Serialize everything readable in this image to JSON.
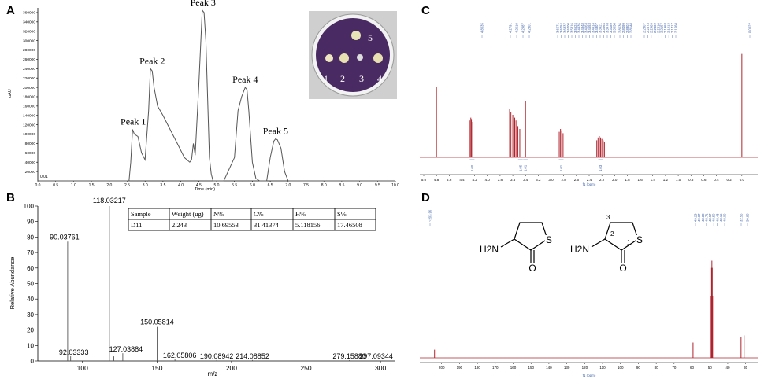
{
  "panels": {
    "A": "A",
    "B": "B",
    "C": "C",
    "D": "D"
  },
  "colors": {
    "trace_gray": "#555555",
    "nmr_red": "#b0242e",
    "axis": "#000000",
    "annot_blue": "#3b5ea8",
    "plate_purple": "#4a2a62"
  },
  "chart_data": [
    {
      "panel": "A",
      "type": "line",
      "title": "",
      "xlabel": "Time (min)",
      "ylabel": "uAU",
      "xlim": [
        0,
        10
      ],
      "ylim": [
        0,
        370000
      ],
      "x_ticks": [
        "0.0",
        "0.5",
        "1.0",
        "1.5",
        "2.0",
        "2.5",
        "3.0",
        "3.5",
        "4.0",
        "4.5",
        "5.0",
        "5.5",
        "6.0",
        "6.5",
        "7.0",
        "7.5",
        "8.0",
        "8.5",
        "9.0",
        "9.5",
        "10.0"
      ],
      "y_ticks": [
        "20000",
        "40000",
        "60000",
        "80000",
        "100000",
        "120000",
        "140000",
        "160000",
        "180000",
        "200000",
        "220000",
        "240000",
        "260000",
        "280000",
        "300000",
        "320000",
        "340000",
        "360000"
      ],
      "baseline_label": "0.01",
      "x": [
        0,
        2.55,
        2.6,
        2.65,
        2.7,
        2.8,
        2.9,
        3.0,
        3.1,
        3.15,
        3.2,
        3.25,
        3.35,
        3.5,
        3.7,
        3.9,
        4.1,
        4.25,
        4.3,
        4.35,
        4.4,
        4.5,
        4.6,
        4.65,
        4.7,
        4.8,
        4.85,
        4.9,
        5.2,
        5.5,
        5.6,
        5.7,
        5.8,
        5.85,
        5.9,
        6.0,
        6.1,
        6.2,
        6.4,
        6.5,
        6.6,
        6.65,
        6.7,
        6.8,
        6.9,
        7.0,
        7.2,
        10
      ],
      "y": [
        0,
        0,
        40000,
        110000,
        100000,
        95000,
        60000,
        45000,
        150000,
        240000,
        235000,
        200000,
        160000,
        140000,
        110000,
        80000,
        50000,
        40000,
        45000,
        80000,
        55000,
        200000,
        365000,
        360000,
        300000,
        50000,
        15000,
        0,
        0,
        50000,
        150000,
        180000,
        200000,
        195000,
        150000,
        40000,
        5000,
        0,
        0,
        50000,
        85000,
        90000,
        88000,
        70000,
        20000,
        0,
        0,
        0
      ],
      "peak_labels": [
        {
          "label": "Peak 1",
          "x": 2.67,
          "y": 110000
        },
        {
          "label": "Peak 2",
          "x": 3.2,
          "y": 240000
        },
        {
          "label": "Peak 3",
          "x": 4.62,
          "y": 365000
        },
        {
          "label": "Peak 4",
          "x": 5.8,
          "y": 200000
        },
        {
          "label": "Peak 5",
          "x": 6.65,
          "y": 90000
        }
      ],
      "inset_plate_labels": [
        "1",
        "2",
        "3",
        "4",
        "5"
      ]
    },
    {
      "panel": "B",
      "type": "bar",
      "title": "",
      "xlabel": "m/z",
      "ylabel": "Relative Abundance",
      "xlim": [
        70,
        310
      ],
      "ylim": [
        0,
        100
      ],
      "x_ticks": [
        "100",
        "150",
        "200",
        "250",
        "300"
      ],
      "y_ticks": [
        "0",
        "10",
        "20",
        "30",
        "40",
        "50",
        "60",
        "70",
        "80",
        "90",
        "100"
      ],
      "peaks": [
        {
          "mz": 90.03761,
          "value": 77,
          "label": "90.03761"
        },
        {
          "mz": 92.03333,
          "value": 3,
          "label": "92.03333"
        },
        {
          "mz": 118.03217,
          "value": 100,
          "label": "118.03217"
        },
        {
          "mz": 121.0,
          "value": 3,
          "label": ""
        },
        {
          "mz": 127.03884,
          "value": 5,
          "label": "127.03884"
        },
        {
          "mz": 150.05814,
          "value": 22,
          "label": "150.05814"
        },
        {
          "mz": 162.05806,
          "value": 1,
          "label": "162.05806"
        },
        {
          "mz": 190.08942,
          "value": 0.6,
          "label": "190.08942"
        },
        {
          "mz": 214.08852,
          "value": 0.6,
          "label": "214.08852"
        },
        {
          "mz": 279.1588,
          "value": 0.5,
          "label": "279.15880"
        },
        {
          "mz": 297.09344,
          "value": 0.5,
          "label": "297.09344"
        }
      ],
      "table": {
        "headers": [
          "Sample",
          "Weight (ug)",
          "N%",
          "C%",
          "H%",
          "S%"
        ],
        "rows": [
          [
            "D11",
            "2.243",
            "10.69553",
            "31.41374",
            "5.118156",
            "17.46508"
          ]
        ]
      }
    },
    {
      "panel": "C",
      "type": "line",
      "title": "",
      "xlabel": "f1 (ppm)",
      "ylabel": "",
      "xlim": [
        5.0,
        -0.2
      ],
      "x_ticks": [
        "5.0",
        "4.8",
        "4.6",
        "4.4",
        "4.2",
        "4.0",
        "3.8",
        "3.6",
        "3.4",
        "3.2",
        "3.0",
        "2.8",
        "2.6",
        "2.4",
        "2.2",
        "2.0",
        "1.8",
        "1.6",
        "1.4",
        "1.2",
        "1.0",
        "0.8",
        "0.6",
        "0.4",
        "0.2",
        "0.0"
      ],
      "peak_shifts_label_groups": [
        [
          "4.8035"
        ],
        [
          "4.2791",
          "4.2610",
          "4.2487",
          "4.2301"
        ],
        [
          "3.6571",
          "3.6454",
          "3.6337",
          "3.6200",
          "3.5816",
          "3.5524",
          "3.4935",
          "3.4848",
          "3.4663",
          "3.4553",
          "3.4414",
          "3.4307",
          "3.3921",
          "3.3664",
          "3.3478",
          "3.3189",
          "3.3038"
        ],
        [
          "2.8636",
          "2.8499",
          "2.8302",
          "2.8148"
        ],
        [
          "2.2807",
          "2.2673",
          "2.2489",
          "2.2402",
          "2.2310",
          "2.2157",
          "2.1968",
          "2.1913",
          "2.1717",
          "2.1568"
        ],
        [
          "0.0022"
        ]
      ],
      "integrals": [
        {
          "x": 4.24,
          "label": "1.00"
        },
        {
          "x": 3.48,
          "label": "1.05"
        },
        {
          "x": 3.4,
          "label": "1.01"
        },
        {
          "x": 2.84,
          "label": "1.01"
        },
        {
          "x": 2.22,
          "label": "1.03"
        }
      ],
      "peaks": [
        {
          "ppm": 4.8,
          "height": 0.5
        },
        {
          "ppm": 4.28,
          "height": 0.26
        },
        {
          "ppm": 4.26,
          "height": 0.28
        },
        {
          "ppm": 4.25,
          "height": 0.27
        },
        {
          "ppm": 4.23,
          "height": 0.25
        },
        {
          "ppm": 3.65,
          "height": 0.34
        },
        {
          "ppm": 3.63,
          "height": 0.32
        },
        {
          "ppm": 3.6,
          "height": 0.3
        },
        {
          "ppm": 3.57,
          "height": 0.28
        },
        {
          "ppm": 3.55,
          "height": 0.26
        },
        {
          "ppm": 3.52,
          "height": 0.22
        },
        {
          "ppm": 3.49,
          "height": 0.2
        },
        {
          "ppm": 3.4,
          "height": 0.4
        },
        {
          "ppm": 2.87,
          "height": 0.18
        },
        {
          "ppm": 2.85,
          "height": 0.2
        },
        {
          "ppm": 2.83,
          "height": 0.19
        },
        {
          "ppm": 2.81,
          "height": 0.17
        },
        {
          "ppm": 2.28,
          "height": 0.12
        },
        {
          "ppm": 2.26,
          "height": 0.14
        },
        {
          "ppm": 2.24,
          "height": 0.15
        },
        {
          "ppm": 2.22,
          "height": 0.14
        },
        {
          "ppm": 2.2,
          "height": 0.13
        },
        {
          "ppm": 2.18,
          "height": 0.12
        },
        {
          "ppm": 2.16,
          "height": 0.11
        },
        {
          "ppm": 0.0,
          "height": 0.73
        }
      ]
    },
    {
      "panel": "D",
      "type": "line",
      "title": "",
      "xlabel": "f1 (ppm)",
      "ylabel": "",
      "xlim": [
        210,
        25
      ],
      "x_ticks": [
        "200",
        "190",
        "180",
        "170",
        "160",
        "150",
        "140",
        "130",
        "120",
        "110",
        "100",
        "90",
        "80",
        "70",
        "60",
        "50",
        "40",
        "30"
      ],
      "peak_shift_labels": [
        "~203.96",
        "49.29",
        "49.07",
        "48.88",
        "48.71",
        "48.57",
        "48.50",
        "48.43",
        "48.16",
        "48.00",
        "32.56",
        "30.85"
      ],
      "peaks": [
        {
          "ppm": 203.96,
          "height": 0.08
        },
        {
          "ppm": 59.4,
          "height": 0.15
        },
        {
          "ppm": 49.3,
          "height": 0.6
        },
        {
          "ppm": 49.07,
          "height": 0.88
        },
        {
          "ppm": 48.86,
          "height": 0.95
        },
        {
          "ppm": 48.64,
          "height": 0.88
        },
        {
          "ppm": 48.43,
          "height": 0.6
        },
        {
          "ppm": 32.56,
          "height": 0.2
        },
        {
          "ppm": 30.85,
          "height": 0.22
        }
      ],
      "structure_labels": {
        "left": {
          "amine": "H2N",
          "s": "S",
          "o": "O"
        },
        "right": {
          "amine": "H2N",
          "s": "S",
          "o": "O",
          "n1": "1",
          "n2": "2",
          "n3": "3"
        }
      }
    }
  ]
}
